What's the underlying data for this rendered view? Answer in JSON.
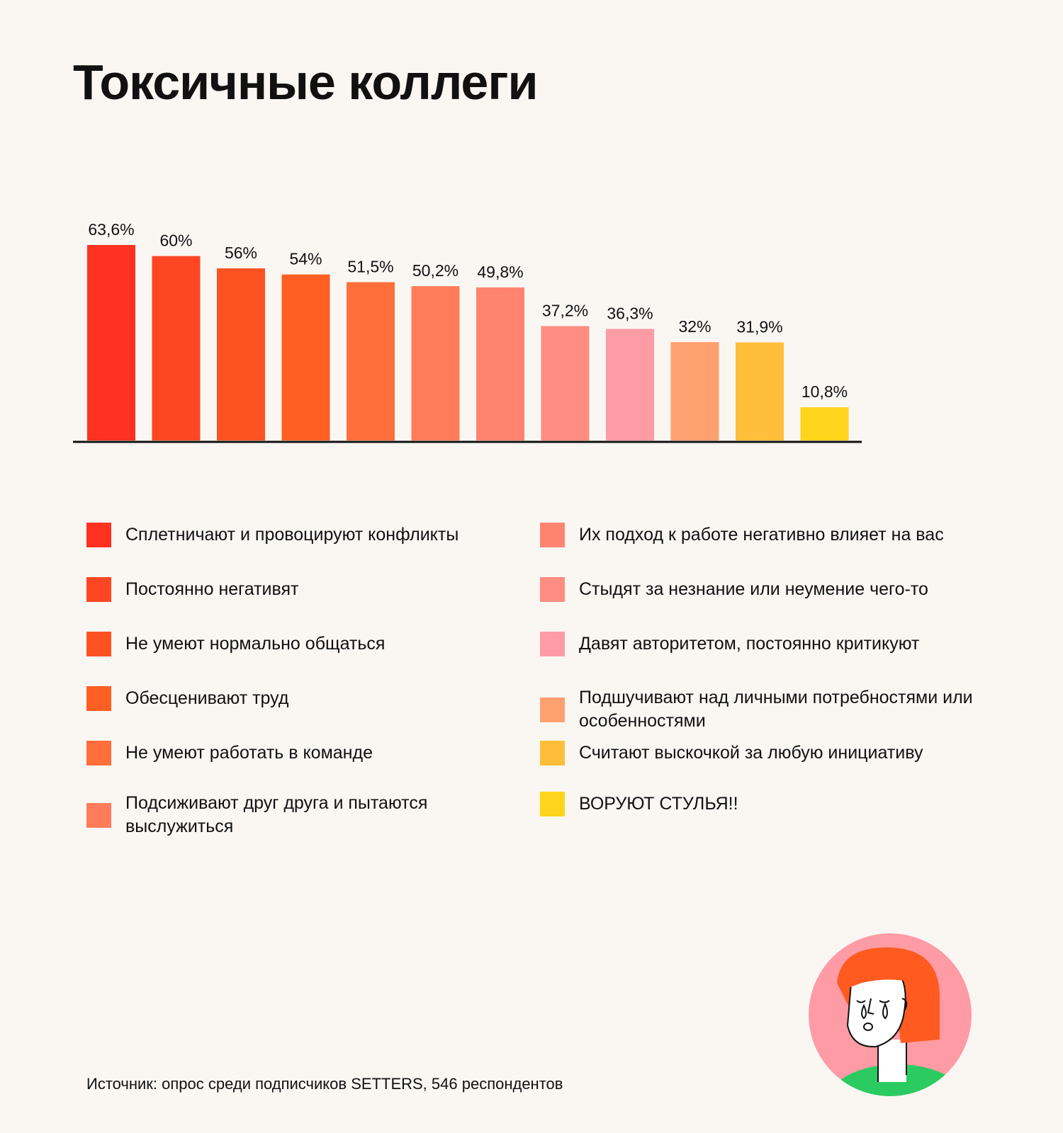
{
  "title": "Токсичные коллеги",
  "chart_data": {
    "type": "bar",
    "title": "Токсичные коллеги",
    "categories": [
      "Сплетничают и провоцируют конфликты",
      "Постоянно негативят",
      "Не умеют нормально общаться",
      "Обесценивают труд",
      "Не умеют работать в команде",
      "Подсиживают друг друга и пытаются выслужиться",
      "Их подход к работе негативно влияет на вас",
      "Стыдят за незнание или неумение чего-то",
      "Давят авторитетом, постоянно критикуют",
      "Подшучивают над личными потребностями или особенностями",
      "Считают выскочкой за любую инициативу",
      "ВОРУЮТ СТУЛЬЯ!!"
    ],
    "values": [
      63.6,
      60,
      56,
      54,
      51.5,
      50.2,
      49.8,
      37.2,
      36.3,
      32,
      31.9,
      10.8
    ],
    "value_labels": [
      "63,6%",
      "60%",
      "56%",
      "54%",
      "51,5%",
      "50,2%",
      "49,8%",
      "37,2%",
      "36,3%",
      "32%",
      "31,9%",
      "10,8%"
    ],
    "colors": [
      "#ff3120",
      "#ff4622",
      "#ff5223",
      "#ff5f22",
      "#ff6e3b",
      "#ff7c5a",
      "#ff8470",
      "#ff8d82",
      "#ff9ba4",
      "#ffa070",
      "#ffbe3a",
      "#ffd41c"
    ],
    "xlabel": "",
    "ylabel": "",
    "ylim": [
      0,
      70
    ],
    "grid": false,
    "legend_position": "bottom"
  },
  "legend": {
    "left": [
      {
        "label": "Сплетничают и провоцируют конфликты",
        "color": "#ff3120"
      },
      {
        "label": "Постоянно негативят",
        "color": "#ff4622"
      },
      {
        "label": "Не умеют нормально общаться",
        "color": "#ff5223"
      },
      {
        "label": "Обесценивают труд",
        "color": "#ff5f22"
      },
      {
        "label": "Не умеют работать в команде",
        "color": "#ff6e3b"
      },
      {
        "label": "Подсиживают друг друга и пытаются выслужиться",
        "color": "#ff7c5a"
      }
    ],
    "right": [
      {
        "label": "Их подход к работе негативно влияет на вас",
        "color": "#ff8470"
      },
      {
        "label": "Стыдят за незнание или неумение чего-то",
        "color": "#ff8d82"
      },
      {
        "label": "Давят авторитетом, постоянно критикуют",
        "color": "#ff9ba4"
      },
      {
        "label": "Подшучивают над личными потребностями или особенностями",
        "color": "#ffa070"
      },
      {
        "label": "Считают выскочкой за любую инициативу",
        "color": "#ffbe3a"
      },
      {
        "label": "ВОРУЮТ СТУЛЬЯ!!",
        "color": "#ffd41c"
      }
    ]
  },
  "source": "Источник: опрос среди подписчиков SETTERS, 546 респондентов",
  "illustration": {
    "icon": "crying-woman-illustration",
    "circle_color": "#ff9ba4",
    "hair_color": "#ff5a1f",
    "shirt_color": "#2ccb62"
  }
}
